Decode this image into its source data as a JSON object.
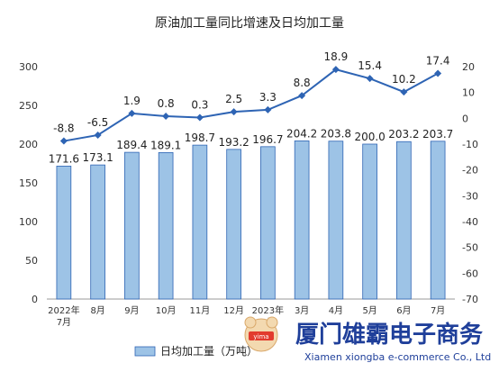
{
  "chart_data": {
    "type": "bar+line",
    "title": "原油加工量同比增速及日均加工量",
    "categories": [
      "2022年\n7月",
      "8月",
      "9月",
      "10月",
      "11月",
      "12月",
      "2023年\n2月",
      "3月",
      "4月",
      "5月",
      "6月",
      "7月"
    ],
    "series": [
      {
        "name": "日均加工量（万吨）",
        "type": "bar",
        "axis": "left",
        "values": [
          171.6,
          173.1,
          189.4,
          189.1,
          198.7,
          193.2,
          196.7,
          204.2,
          203.8,
          200.0,
          203.2,
          203.7
        ],
        "labels": [
          "171.6",
          "173.1",
          "189.4",
          "189.1",
          "198.7",
          "193.2",
          "196.7",
          "204.2",
          "203.8",
          "200.0",
          "203.2",
          "203.7"
        ],
        "color": "#9dc3e6"
      },
      {
        "type": "line",
        "axis": "right",
        "values": [
          -8.8,
          -6.5,
          1.9,
          0.8,
          0.3,
          2.5,
          3.3,
          8.8,
          18.9,
          15.4,
          10.2,
          17.4
        ],
        "labels": [
          "-8.8",
          "-6.5",
          "1.9",
          "0.8",
          "0.3",
          "2.5",
          "3.3",
          "8.8",
          "18.9",
          "15.4",
          "10.2",
          "17.4"
        ],
        "color": "#2e64b4"
      }
    ],
    "y_left": {
      "ticks": [
        "0",
        "50",
        "100",
        "150",
        "200",
        "250",
        "300"
      ],
      "range": [
        0,
        300
      ]
    },
    "y_right": {
      "ticks": [
        "-70",
        "-60",
        "-50",
        "-40",
        "-30",
        "-20",
        "-10",
        "0",
        "10",
        "20"
      ],
      "range": [
        -70,
        20
      ]
    },
    "legend": {
      "position": "bottom-left"
    },
    "grid": false
  },
  "watermark": {
    "logo_text": "yima",
    "company_cn": "厦门雄霸电子商务",
    "company_en": "Xiamen xiongba e-commerce Co., Ltd"
  }
}
